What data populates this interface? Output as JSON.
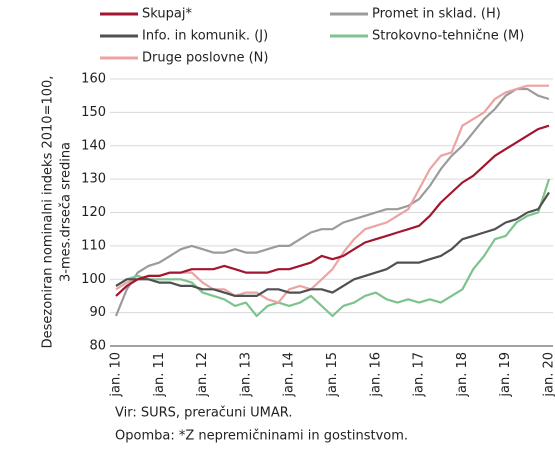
{
  "chart_data": {
    "type": "line",
    "y_label": [
      "Desezoniran nominalni indeks 2010=100,",
      "3-mes.drseča sredina"
    ],
    "categories": [
      "jan. 10",
      null,
      null,
      null,
      "jan. 11",
      null,
      null,
      null,
      "jan. 12",
      null,
      null,
      null,
      "jan. 13",
      null,
      null,
      null,
      "jan. 14",
      null,
      null,
      null,
      "jan. 15",
      null,
      null,
      null,
      "jan. 16",
      null,
      null,
      null,
      "jan. 17",
      null,
      null,
      null,
      "jan. 18",
      null,
      null,
      null,
      "jan. 19",
      null,
      null,
      null,
      "jan. 20"
    ],
    "series": [
      {
        "name": "Skupaj*",
        "color": "#a3162f",
        "values": [
          95,
          98,
          100,
          101,
          101,
          102,
          102,
          103,
          103,
          103,
          104,
          103,
          102,
          102,
          102,
          103,
          103,
          104,
          105,
          107,
          106,
          107,
          109,
          111,
          112,
          113,
          114,
          115,
          116,
          119,
          123,
          126,
          129,
          131,
          134,
          137,
          139,
          141,
          143,
          145,
          146
        ]
      },
      {
        "name": "Promet in sklad. (H)",
        "color": "#9b9b9b",
        "values": [
          89,
          97,
          102,
          104,
          105,
          107,
          109,
          110,
          109,
          108,
          108,
          109,
          108,
          108,
          109,
          110,
          110,
          112,
          114,
          115,
          115,
          117,
          118,
          119,
          120,
          121,
          121,
          122,
          124,
          128,
          133,
          137,
          140,
          144,
          148,
          151,
          155,
          157,
          157,
          155,
          154
        ]
      },
      {
        "name": "Info. in komunik. (J)",
        "color": "#505050",
        "values": [
          98,
          100,
          100,
          100,
          99,
          99,
          98,
          98,
          97,
          97,
          96,
          95,
          95,
          95,
          97,
          97,
          96,
          96,
          97,
          97,
          96,
          98,
          100,
          101,
          102,
          103,
          105,
          105,
          105,
          106,
          107,
          109,
          112,
          113,
          114,
          115,
          117,
          118,
          120,
          121,
          126
        ]
      },
      {
        "name": "Strokovno-tehnične (M)",
        "color": "#7cc48c",
        "values": [
          98,
          100,
          101,
          100,
          100,
          100,
          100,
          99,
          96,
          95,
          94,
          92,
          93,
          89,
          92,
          93,
          92,
          93,
          95,
          92,
          89,
          92,
          93,
          95,
          96,
          94,
          93,
          94,
          93,
          94,
          93,
          95,
          97,
          103,
          107,
          112,
          113,
          117,
          119,
          120,
          130
        ]
      },
      {
        "name": "Druge poslovne (N)",
        "color": "#eba3a3",
        "values": [
          97,
          99,
          100,
          101,
          101,
          102,
          102,
          102,
          99,
          97,
          97,
          95,
          96,
          96,
          94,
          93,
          97,
          98,
          97,
          100,
          103,
          108,
          112,
          115,
          116,
          117,
          119,
          121,
          127,
          133,
          137,
          138,
          146,
          148,
          150,
          154,
          156,
          157,
          158,
          158,
          158
        ]
      }
    ],
    "ylim": [
      80,
      160
    ],
    "yticks": [
      80,
      90,
      100,
      110,
      120,
      130,
      140,
      150,
      160
    ],
    "grid": true,
    "notes": [
      "Vir: SURS, preračuni UMAR.",
      "Opomba: *Z nepremičninami in gostinstvom."
    ]
  }
}
